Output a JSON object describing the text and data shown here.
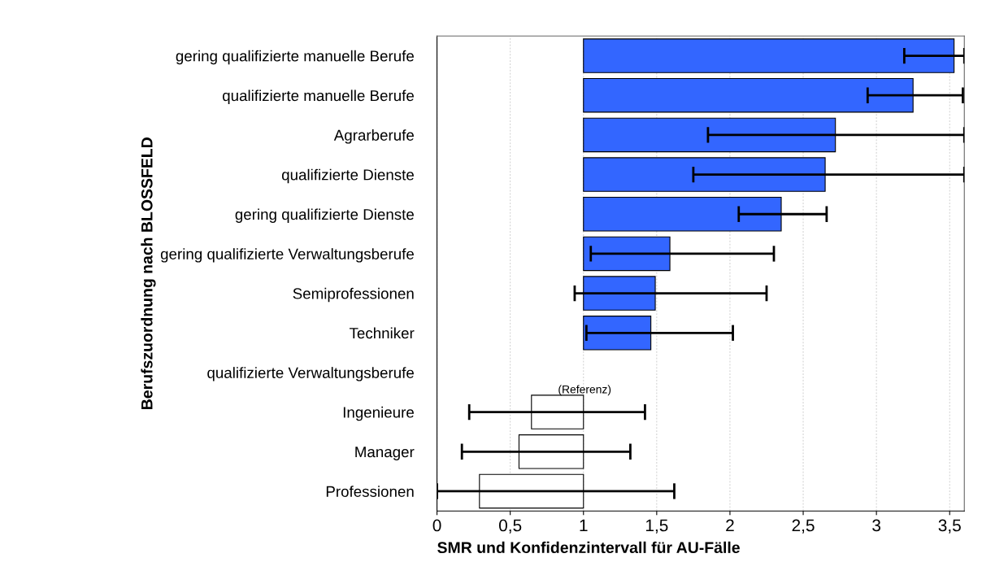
{
  "chart_data": {
    "type": "bar",
    "orientation": "horizontal",
    "xlabel": "SMR und Konfidenzintervall für AU-Fälle",
    "ylabel": "Berufszuordnung nach BLOSSFELD",
    "categories": [
      "gering qualifizierte manuelle Berufe",
      "qualifizierte manuelle Berufe",
      "Agrarberufe",
      "qualifizierte Dienste",
      "gering qualifizierte Dienste",
      "gering qualifizierte Verwaltungsberufe",
      "Semiprofessionen",
      "Techniker",
      "qualifizierte Verwaltungsberufe",
      "Ingenieure",
      "Manager",
      "Professionen"
    ],
    "base": [
      1,
      1,
      1,
      1,
      1,
      1,
      1,
      1,
      null,
      1,
      1,
      1
    ],
    "values": [
      2.53,
      2.25,
      1.72,
      1.65,
      1.35,
      0.59,
      0.49,
      0.46,
      null,
      -0.355,
      -0.44,
      -0.71
    ],
    "colors": [
      "#3366ff",
      "#3366ff",
      "#3366ff",
      "#3366ff",
      "#3366ff",
      "#3366ff",
      "#3366ff",
      "#3366ff",
      "#ffffff",
      "#ffffff",
      "#ffffff",
      "#ffffff"
    ],
    "errors": [
      [
        3.19,
        3.6
      ],
      [
        2.94,
        3.59
      ],
      [
        1.85,
        3.6
      ],
      [
        1.75,
        3.6
      ],
      [
        2.06,
        2.66
      ],
      [
        1.05,
        2.3
      ],
      [
        0.94,
        2.25
      ],
      [
        1.02,
        2.02
      ],
      null,
      [
        0.22,
        1.42
      ],
      [
        0.17,
        1.32
      ],
      [
        0,
        1.62
      ]
    ],
    "annotations": [
      "(Referenz)"
    ],
    "xlim": [
      0,
      3.6
    ],
    "xticks": [
      0,
      {
        "value": 0.5,
        "label": "0,5"
      },
      1,
      {
        "value": 1.5,
        "label": "1,5"
      },
      2,
      {
        "value": 2.5,
        "label": "2,5"
      },
      3,
      {
        "value": 3.5,
        "label": "3,5"
      }
    ],
    "grid": "x",
    "legend": false
  }
}
